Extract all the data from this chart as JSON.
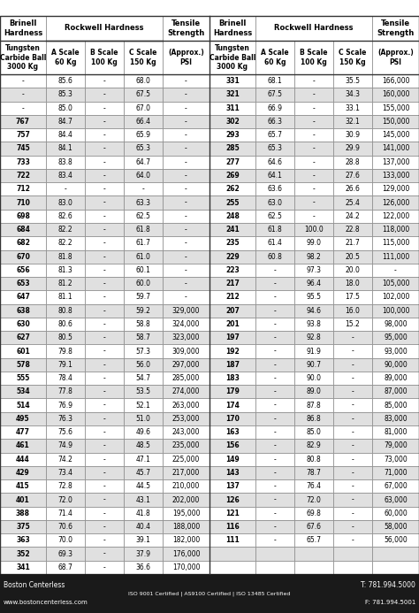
{
  "left_data": [
    [
      "-",
      "85.6",
      "-",
      "68.0",
      "-"
    ],
    [
      "-",
      "85.3",
      "-",
      "67.5",
      "-"
    ],
    [
      "-",
      "85.0",
      "-",
      "67.0",
      "-"
    ],
    [
      "767",
      "84.7",
      "-",
      "66.4",
      "-"
    ],
    [
      "757",
      "84.4",
      "-",
      "65.9",
      "-"
    ],
    [
      "745",
      "84.1",
      "-",
      "65.3",
      "-"
    ],
    [
      "733",
      "83.8",
      "-",
      "64.7",
      "-"
    ],
    [
      "722",
      "83.4",
      "-",
      "64.0",
      "-"
    ],
    [
      "712",
      "-",
      "-",
      "-",
      "-"
    ],
    [
      "710",
      "83.0",
      "-",
      "63.3",
      "-"
    ],
    [
      "698",
      "82.6",
      "-",
      "62.5",
      "-"
    ],
    [
      "684",
      "82.2",
      "-",
      "61.8",
      "-"
    ],
    [
      "682",
      "82.2",
      "-",
      "61.7",
      "-"
    ],
    [
      "670",
      "81.8",
      "-",
      "61.0",
      "-"
    ],
    [
      "656",
      "81.3",
      "-",
      "60.1",
      "-"
    ],
    [
      "653",
      "81.2",
      "-",
      "60.0",
      "-"
    ],
    [
      "647",
      "81.1",
      "-",
      "59.7",
      "-"
    ],
    [
      "638",
      "80.8",
      "-",
      "59.2",
      "329,000"
    ],
    [
      "630",
      "80.6",
      "-",
      "58.8",
      "324,000"
    ],
    [
      "627",
      "80.5",
      "-",
      "58.7",
      "323,000"
    ],
    [
      "601",
      "79.8",
      "-",
      "57.3",
      "309,000"
    ],
    [
      "578",
      "79.1",
      "-",
      "56.0",
      "297,000"
    ],
    [
      "555",
      "78.4",
      "-",
      "54.7",
      "285,000"
    ],
    [
      "534",
      "77.8",
      "-",
      "53.5",
      "274,000"
    ],
    [
      "514",
      "76.9",
      "-",
      "52.1",
      "263,000"
    ],
    [
      "495",
      "76.3",
      "-",
      "51.0",
      "253,000"
    ],
    [
      "477",
      "75.6",
      "-",
      "49.6",
      "243,000"
    ],
    [
      "461",
      "74.9",
      "-",
      "48.5",
      "235,000"
    ],
    [
      "444",
      "74.2",
      "-",
      "47.1",
      "225,000"
    ],
    [
      "429",
      "73.4",
      "-",
      "45.7",
      "217,000"
    ],
    [
      "415",
      "72.8",
      "-",
      "44.5",
      "210,000"
    ],
    [
      "401",
      "72.0",
      "-",
      "43.1",
      "202,000"
    ],
    [
      "388",
      "71.4",
      "-",
      "41.8",
      "195,000"
    ],
    [
      "375",
      "70.6",
      "-",
      "40.4",
      "188,000"
    ],
    [
      "363",
      "70.0",
      "-",
      "39.1",
      "182,000"
    ],
    [
      "352",
      "69.3",
      "-",
      "37.9",
      "176,000"
    ],
    [
      "341",
      "68.7",
      "-",
      "36.6",
      "170,000"
    ]
  ],
  "right_data": [
    [
      "331",
      "68.1",
      "-",
      "35.5",
      "166,000"
    ],
    [
      "321",
      "67.5",
      "-",
      "34.3",
      "160,000"
    ],
    [
      "311",
      "66.9",
      "-",
      "33.1",
      "155,000"
    ],
    [
      "302",
      "66.3",
      "-",
      "32.1",
      "150,000"
    ],
    [
      "293",
      "65.7",
      "-",
      "30.9",
      "145,000"
    ],
    [
      "285",
      "65.3",
      "-",
      "29.9",
      "141,000"
    ],
    [
      "277",
      "64.6",
      "-",
      "28.8",
      "137,000"
    ],
    [
      "269",
      "64.1",
      "-",
      "27.6",
      "133,000"
    ],
    [
      "262",
      "63.6",
      "-",
      "26.6",
      "129,000"
    ],
    [
      "255",
      "63.0",
      "-",
      "25.4",
      "126,000"
    ],
    [
      "248",
      "62.5",
      "-",
      "24.2",
      "122,000"
    ],
    [
      "241",
      "61.8",
      "100.0",
      "22.8",
      "118,000"
    ],
    [
      "235",
      "61.4",
      "99.0",
      "21.7",
      "115,000"
    ],
    [
      "229",
      "60.8",
      "98.2",
      "20.5",
      "111,000"
    ],
    [
      "223",
      "-",
      "97.3",
      "20.0",
      "-"
    ],
    [
      "217",
      "-",
      "96.4",
      "18.0",
      "105,000"
    ],
    [
      "212",
      "-",
      "95.5",
      "17.5",
      "102,000"
    ],
    [
      "207",
      "-",
      "94.6",
      "16.0",
      "100,000"
    ],
    [
      "201",
      "-",
      "93.8",
      "15.2",
      "98,000"
    ],
    [
      "197",
      "-",
      "92.8",
      "-",
      "95,000"
    ],
    [
      "192",
      "-",
      "91.9",
      "-",
      "93,000"
    ],
    [
      "187",
      "-",
      "90.7",
      "-",
      "90,000"
    ],
    [
      "183",
      "-",
      "90.0",
      "-",
      "89,000"
    ],
    [
      "179",
      "-",
      "89.0",
      "-",
      "87,000"
    ],
    [
      "174",
      "-",
      "87.8",
      "-",
      "85,000"
    ],
    [
      "170",
      "-",
      "86.8",
      "-",
      "83,000"
    ],
    [
      "163",
      "-",
      "85.0",
      "-",
      "81,000"
    ],
    [
      "156",
      "-",
      "82.9",
      "-",
      "79,000"
    ],
    [
      "149",
      "-",
      "80.8",
      "-",
      "73,000"
    ],
    [
      "143",
      "-",
      "78.7",
      "-",
      "71,000"
    ],
    [
      "137",
      "-",
      "76.4",
      "-",
      "67,000"
    ],
    [
      "126",
      "-",
      "72.0",
      "-",
      "63,000"
    ],
    [
      "121",
      "-",
      "69.8",
      "-",
      "60,000"
    ],
    [
      "116",
      "-",
      "67.6",
      "-",
      "58,000"
    ],
    [
      "111",
      "-",
      "65.7",
      "-",
      "56,000"
    ]
  ],
  "footer_left1": "Boston Centerless",
  "footer_left2": "www.bostoncenterless.com",
  "footer_center": "ISO 9001 Certified | AS9100 Certified | ISO 13485 Certified",
  "footer_right1": "T: 781.994.5000",
  "footer_right2": "F: 781.994.5001",
  "bg_color": "#ffffff",
  "alt_row_bg": "#e0e0e0",
  "footer_bg": "#1a1a1a",
  "footer_text_color": "#ffffff",
  "border_color": "#888888"
}
